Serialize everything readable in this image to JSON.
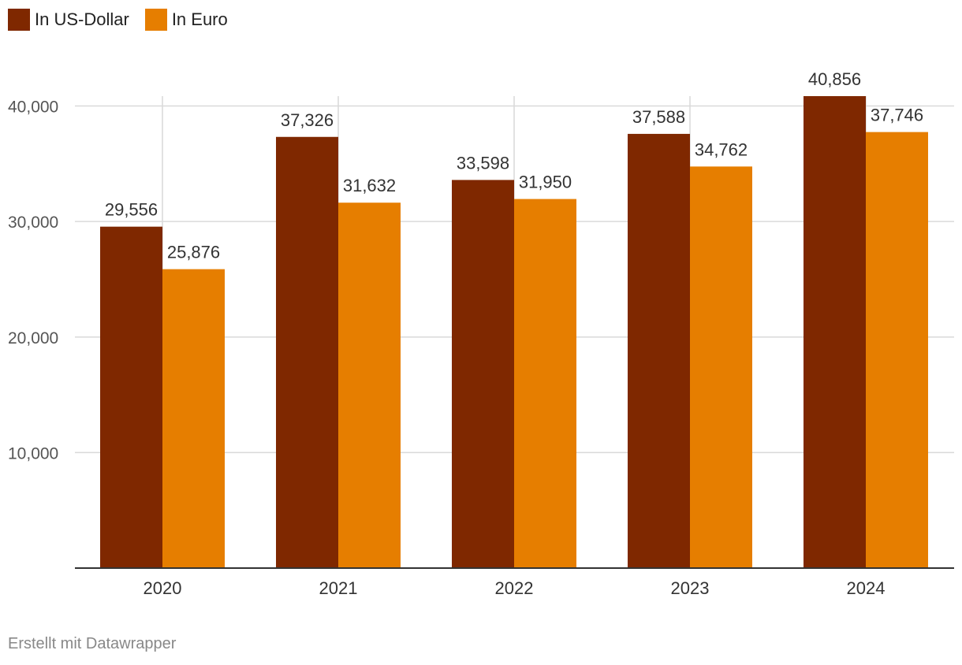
{
  "chart_data": {
    "type": "bar",
    "categories": [
      "2020",
      "2021",
      "2022",
      "2023",
      "2024"
    ],
    "series": [
      {
        "name": "In US-Dollar",
        "color": "#7f2800",
        "values": [
          29556,
          37326,
          33598,
          37588,
          40856
        ],
        "labels": [
          "29,556",
          "37,326",
          "33,598",
          "37,588",
          "40,856"
        ]
      },
      {
        "name": "In Euro",
        "color": "#e67e00",
        "values": [
          25876,
          31632,
          31950,
          34762,
          37746
        ],
        "labels": [
          "25,876",
          "31,632",
          "31,950",
          "34,762",
          "37,746"
        ]
      }
    ],
    "yticks": [
      10000,
      20000,
      30000,
      40000
    ],
    "ytick_labels": [
      "10,000",
      "20,000",
      "30,000",
      "40,000"
    ],
    "ylim": [
      0,
      40856
    ],
    "title": "",
    "xlabel": "",
    "ylabel": "",
    "legend": "top-left",
    "grid": true
  },
  "footer": {
    "credit": "Erstellt mit Datawrapper"
  },
  "colors": {
    "grid": "#d9d9d9",
    "axis": "#333333",
    "tick_text": "#555555",
    "label_text": "#333333"
  }
}
